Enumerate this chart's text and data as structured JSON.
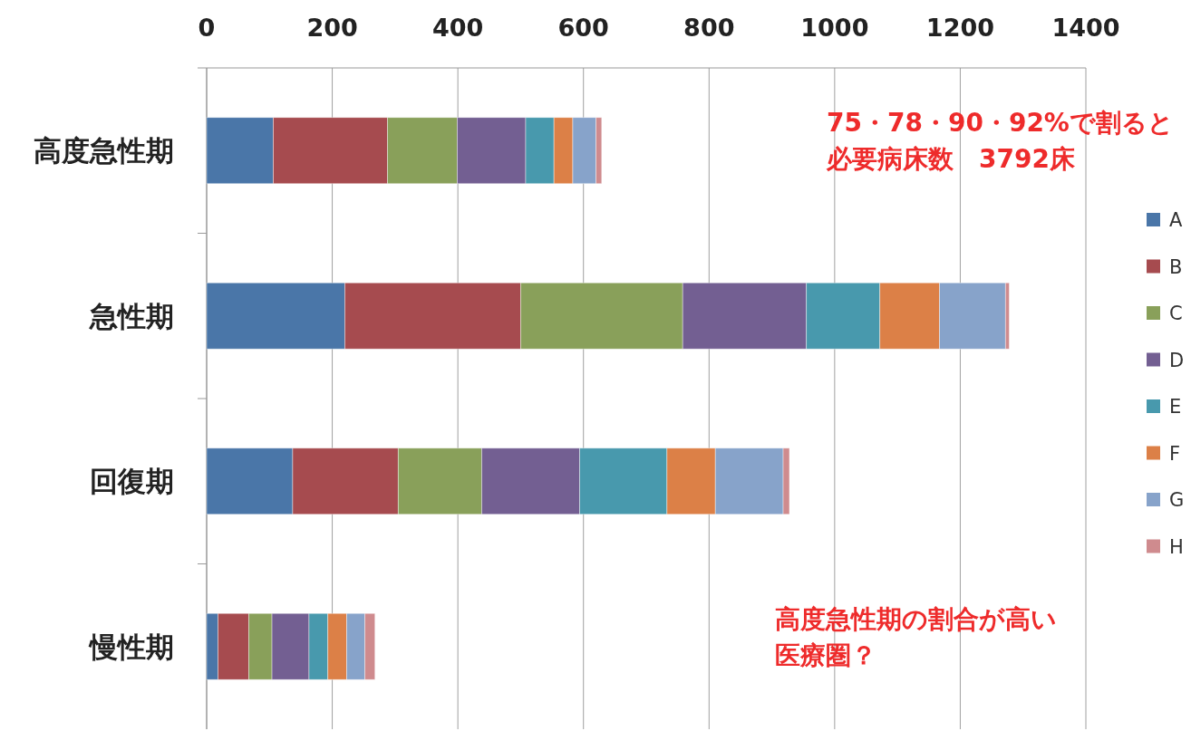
{
  "chart_data": {
    "type": "bar",
    "orientation": "horizontal",
    "stacked": true,
    "categories": [
      "高度急性期",
      "急性期",
      "回復期",
      "慢性期"
    ],
    "series": [
      {
        "name": "A",
        "color": "#4a76a8",
        "values": [
          106,
          220,
          137,
          18
        ]
      },
      {
        "name": "B",
        "color": "#a64b4f",
        "values": [
          182,
          280,
          168,
          49
        ]
      },
      {
        "name": "C",
        "color": "#89a05a",
        "values": [
          111,
          258,
          133,
          37
        ]
      },
      {
        "name": "D",
        "color": "#735f92",
        "values": [
          109,
          197,
          156,
          59
        ]
      },
      {
        "name": "E",
        "color": "#4899ad",
        "values": [
          45,
          117,
          139,
          30
        ]
      },
      {
        "name": "F",
        "color": "#dc8047",
        "values": [
          30,
          95,
          77,
          30
        ]
      },
      {
        "name": "G",
        "color": "#87a3ca",
        "values": [
          37,
          105,
          108,
          29
        ]
      },
      {
        "name": "H",
        "color": "#cf8b8e",
        "values": [
          9,
          6,
          10,
          16
        ]
      }
    ],
    "xlim": [
      0,
      1400
    ],
    "xticks": [
      0,
      200,
      400,
      600,
      800,
      1000,
      1200,
      1400
    ],
    "grid": "x",
    "legend": "right",
    "annotations": [
      "75・78・90・92%で割ると",
      "必要病床数　3792床",
      "高度急性期の割合が高い",
      "医療圏？"
    ]
  }
}
